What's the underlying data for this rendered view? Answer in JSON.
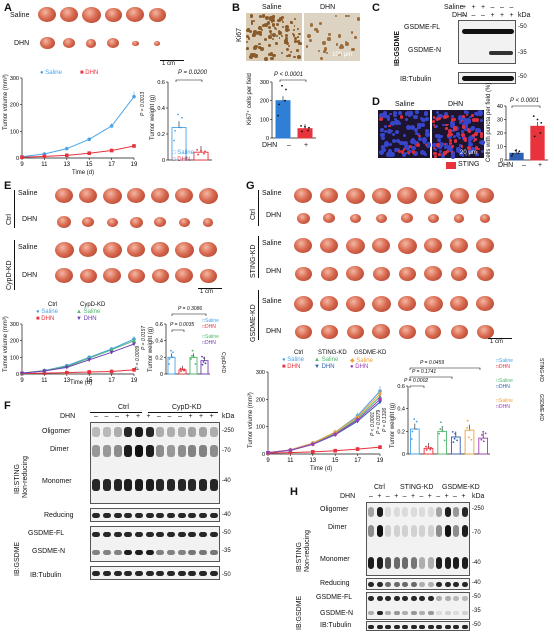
{
  "panels": {
    "A": {
      "letter": "A",
      "rows": [
        "Saline",
        "DHN"
      ],
      "scalebar": "1 cm",
      "tumor_volume": {
        "ylabel": "Tumor volume (mm³)",
        "xlabel": "Time (d)",
        "legend": [
          "Saline",
          "DHN"
        ],
        "pvalue": "P = 0.0013"
      },
      "tumor_weight": {
        "ylabel": "Tumor weight (g)",
        "pvalue": "P = 0.0200",
        "legend": [
          "Saline",
          "DHN"
        ]
      }
    },
    "B": {
      "letter": "B",
      "cols": [
        "Saline",
        "DHN"
      ],
      "side": "Ki67",
      "scalebar": "100 μm",
      "ylabel": "Ki67⁺ cells per field",
      "pvalue": "P < 0.0001",
      "xrow": [
        "DHN",
        "–",
        "+"
      ]
    },
    "C": {
      "letter": "C",
      "rows": [
        {
          "name": "Saline",
          "signs": [
            "+",
            "+",
            "+",
            "–",
            "–",
            "–"
          ]
        },
        {
          "name": "DHN",
          "signs": [
            "–",
            "–",
            "–",
            "+",
            "+",
            "+"
          ]
        }
      ],
      "unit": "kDa",
      "group": "IB:GSDME",
      "labels": [
        "GSDME-FL",
        "GSDME-N",
        "IB:Tubulin"
      ],
      "kda": [
        "-50",
        "-35",
        "-50"
      ]
    },
    "D": {
      "letter": "D",
      "cols": [
        "Saline",
        "DHN"
      ],
      "scalebar": "20 μm",
      "legend": "STING",
      "ylabel": "Cells with puncta per field (%)",
      "pvalue": "P < 0.0001",
      "xrow": [
        "DHN",
        "–",
        "+"
      ]
    },
    "E": {
      "letter": "E",
      "groups": [
        "Ctrl",
        "CypD-KD"
      ],
      "rows": [
        "Saline",
        "DHN",
        "Saline",
        "DHN"
      ],
      "scalebar": "1 cm",
      "tumor_volume": {
        "ylabel": "Tumor volume (mm³)",
        "xlabel": "Time (d)",
        "legend_groups": [
          "Ctrl",
          "CypD-KD"
        ],
        "legend": [
          "Saline",
          "DHN",
          "Saline",
          "DHN"
        ],
        "pvalues": [
          "P = 0.0009",
          "P = 0.0157"
        ]
      },
      "tumor_weight": {
        "ylabel": "Tumor weight (g)",
        "pvalues": [
          "P = 0.3086",
          "P = 0.0035"
        ],
        "legend_side": "CypD-KD",
        "legend": [
          "Saline",
          "DHN",
          "Saline",
          "DHN"
        ]
      }
    },
    "F": {
      "letter": "F",
      "dhn_label": "DHN",
      "groups": [
        "Ctrl",
        "CypD-KD"
      ],
      "signs": [
        "–",
        "–",
        "–",
        "+",
        "+",
        "+",
        "–",
        "–",
        "–",
        "+",
        "+",
        "+"
      ],
      "labels": [
        "Oligomer",
        "Dimer",
        "Monomer",
        "Reducing",
        "GSDME-FL",
        "GSDME-N",
        "IB:Tubulin"
      ],
      "side": [
        "IB:STING",
        "Non-reducing",
        "IB:GSDME"
      ],
      "kda": [
        "-250",
        "-70",
        "-40",
        "-40",
        "-50",
        "-35",
        "-50"
      ],
      "unit": "kDa"
    },
    "G": {
      "letter": "G",
      "groups": [
        "Ctrl",
        "STING-KD",
        "GSDME-KD"
      ],
      "rows": [
        "Saline",
        "DHN",
        "Saline",
        "DHN",
        "Saline",
        "DHN"
      ],
      "scalebar": "1 cm",
      "tumor_volume": {
        "ylabel": "Tumor volume (mm³)",
        "xlabel": "Time (d)",
        "legend_groups": [
          "Ctrl",
          "STING-KD",
          "GSDME-KD"
        ],
        "legend": [
          "Saline",
          "Saline",
          "Saline",
          "DHN",
          "DHN",
          "DHN"
        ],
        "pvalues": [
          "P < 0.0001",
          "P = 0.0379",
          "P = 0.1326"
        ]
      },
      "tumor_weight": {
        "ylabel": "Tumor weight (g)",
        "pvalues": [
          "P = 0.0459",
          "P = 0.1741",
          "P = 0.0002"
        ],
        "legend": [
          "Saline",
          "DHN",
          "Saline",
          "DHN",
          "Saline",
          "DHN"
        ],
        "legend_side": [
          "STING-KD",
          "GSDME-KD"
        ]
      }
    },
    "H": {
      "letter": "H",
      "dhn_label": "DHN",
      "groups": [
        "Ctrl",
        "STING-KD",
        "GSDME-KD"
      ],
      "signs": [
        "–",
        "+",
        "–",
        "+",
        "–",
        "+",
        "–",
        "+",
        "–",
        "+",
        "–",
        "+"
      ],
      "labels": [
        "Oligomer",
        "Dimer",
        "Monomer",
        "Reducing",
        "GSDME-FL",
        "GSDME-N",
        "IB:Tubulin"
      ],
      "side": [
        "IB:STING",
        "Non-reducing",
        "IB:GSDME"
      ],
      "kda": [
        "-250",
        "-70",
        "-40",
        "-40",
        "-50",
        "-35",
        "-50"
      ],
      "unit": "kDa"
    }
  },
  "chart_data": [
    {
      "id": "A-volume",
      "type": "line",
      "x": [
        9,
        11,
        13,
        15,
        17,
        19
      ],
      "series": [
        {
          "name": "Saline",
          "values": [
            5,
            15,
            35,
            70,
            120,
            230
          ]
        },
        {
          "name": "DHN",
          "values": [
            3,
            6,
            10,
            18,
            28,
            45
          ]
        }
      ],
      "ylim": [
        0,
        300
      ],
      "yticks": [
        0,
        100,
        200,
        300
      ],
      "colors": {
        "Saline": "#4aa3e8",
        "DHN": "#e8323c"
      }
    },
    {
      "id": "A-weight",
      "type": "bar",
      "categories": [
        "Saline",
        "DHN"
      ],
      "values": [
        0.25,
        0.06
      ],
      "ylim": [
        0,
        0.6
      ],
      "yticks": [
        0,
        0.2,
        0.4,
        0.6
      ]
    },
    {
      "id": "B-ki67",
      "type": "bar",
      "categories": [
        "–",
        "+"
      ],
      "values": [
        200,
        50
      ],
      "ylim": [
        0,
        300
      ],
      "yticks": [
        0,
        100,
        200,
        300
      ]
    },
    {
      "id": "D-puncta",
      "type": "bar",
      "categories": [
        "–",
        "+"
      ],
      "values": [
        5,
        25
      ],
      "ylim": [
        0,
        40
      ],
      "yticks": [
        0,
        10,
        20,
        30,
        40
      ]
    },
    {
      "id": "E-volume",
      "type": "line",
      "x": [
        9,
        11,
        13,
        15,
        17,
        19
      ],
      "series": [
        {
          "name": "Ctrl Saline",
          "values": [
            5,
            20,
            50,
            100,
            150,
            210
          ]
        },
        {
          "name": "Ctrl DHN",
          "values": [
            3,
            5,
            8,
            12,
            15,
            25
          ]
        },
        {
          "name": "CypD-KD Saline",
          "values": [
            5,
            20,
            45,
            95,
            145,
            200
          ]
        },
        {
          "name": "CypD-KD DHN",
          "values": [
            5,
            18,
            40,
            85,
            130,
            180
          ]
        }
      ],
      "ylim": [
        0,
        300
      ],
      "yticks": [
        0,
        100,
        200,
        300
      ]
    },
    {
      "id": "E-weight",
      "type": "bar",
      "categories": [
        "Ctrl Saline",
        "Ctrl DHN",
        "CypD-KD Saline",
        "CypD-KD DHN"
      ],
      "values": [
        0.2,
        0.05,
        0.2,
        0.16
      ],
      "ylim": [
        0,
        0.6
      ],
      "yticks": [
        0,
        0.2,
        0.4,
        0.6
      ]
    },
    {
      "id": "G-volume",
      "type": "line",
      "x": [
        9,
        11,
        13,
        15,
        17,
        19
      ],
      "series": [
        {
          "name": "Ctrl Saline",
          "values": [
            5,
            15,
            40,
            80,
            140,
            230
          ]
        },
        {
          "name": "Ctrl DHN",
          "values": [
            3,
            5,
            8,
            12,
            18,
            25
          ]
        },
        {
          "name": "STING-KD Saline",
          "values": [
            5,
            14,
            38,
            75,
            130,
            210
          ]
        },
        {
          "name": "STING-KD DHN",
          "values": [
            5,
            13,
            35,
            70,
            120,
            190
          ]
        },
        {
          "name": "GSDME-KD Saline",
          "values": [
            5,
            15,
            40,
            80,
            135,
            220
          ]
        },
        {
          "name": "GSDME-KD DHN",
          "values": [
            5,
            14,
            36,
            72,
            125,
            200
          ]
        }
      ],
      "ylim": [
        0,
        300
      ],
      "yticks": [
        0,
        100,
        200,
        300
      ]
    },
    {
      "id": "G-weight",
      "type": "bar",
      "categories": [
        "Ctrl Saline",
        "Ctrl DHN",
        "STING-KD Saline",
        "STING-KD DHN",
        "GSDME-KD Saline",
        "GSDME-KD DHN"
      ],
      "values": [
        0.22,
        0.05,
        0.2,
        0.15,
        0.21,
        0.14
      ],
      "ylim": [
        0,
        0.6
      ],
      "yticks": [
        0,
        0.2,
        0.4,
        0.6
      ]
    }
  ]
}
